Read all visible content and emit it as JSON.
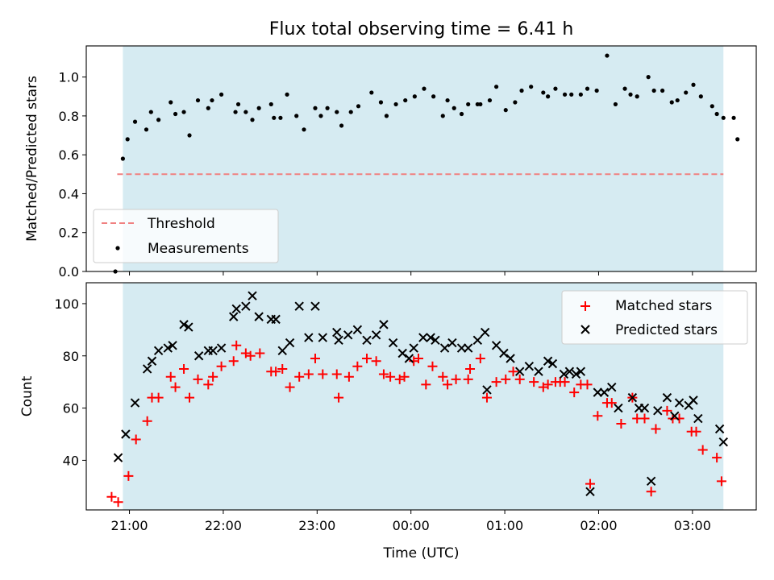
{
  "chart_data": [
    {
      "type": "scatter",
      "title": "Flux total observing time = 6.41 h",
      "ylabel": "Matched/Predicted stars",
      "xlabel": "",
      "x_unit": "hours since 20:00 UTC",
      "xlim": [
        20.54,
        27.68
      ],
      "ylim": [
        0,
        1.16
      ],
      "yticks": [
        0.0,
        0.2,
        0.4,
        0.6,
        0.8,
        1.0
      ],
      "ytick_labels": [
        "0.0",
        "0.2",
        "0.4",
        "0.6",
        "0.8",
        "1.0"
      ],
      "xticks": [
        21,
        22,
        23,
        24,
        25,
        26,
        27
      ],
      "shaded_span": [
        20.93,
        27.33
      ],
      "shade_color": "#add8e6",
      "grid": false,
      "legend_position": "lower-left",
      "threshold": {
        "name": "Threshold",
        "value": 0.5,
        "x_range": [
          20.87,
          27.33
        ],
        "color": "#f08080",
        "style": "dashed"
      },
      "series": [
        {
          "name": "Measurements",
          "color": "#000000",
          "marker": "dot",
          "points": [
            [
              20.85,
              0.0
            ],
            [
              20.93,
              0.58
            ],
            [
              20.98,
              0.68
            ],
            [
              21.06,
              0.77
            ],
            [
              21.18,
              0.73
            ],
            [
              21.23,
              0.82
            ],
            [
              21.31,
              0.78
            ],
            [
              21.44,
              0.87
            ],
            [
              21.49,
              0.81
            ],
            [
              21.58,
              0.82
            ],
            [
              21.64,
              0.7
            ],
            [
              21.73,
              0.88
            ],
            [
              21.84,
              0.84
            ],
            [
              21.88,
              0.88
            ],
            [
              21.98,
              0.91
            ],
            [
              22.13,
              0.82
            ],
            [
              22.16,
              0.86
            ],
            [
              22.24,
              0.82
            ],
            [
              22.31,
              0.78
            ],
            [
              22.38,
              0.84
            ],
            [
              22.51,
              0.86
            ],
            [
              22.54,
              0.79
            ],
            [
              22.61,
              0.79
            ],
            [
              22.68,
              0.91
            ],
            [
              22.78,
              0.8
            ],
            [
              22.86,
              0.73
            ],
            [
              22.98,
              0.84
            ],
            [
              23.04,
              0.8
            ],
            [
              23.11,
              0.84
            ],
            [
              23.21,
              0.82
            ],
            [
              23.26,
              0.75
            ],
            [
              23.36,
              0.82
            ],
            [
              23.44,
              0.85
            ],
            [
              23.58,
              0.92
            ],
            [
              23.68,
              0.87
            ],
            [
              23.74,
              0.8
            ],
            [
              23.84,
              0.86
            ],
            [
              23.94,
              0.88
            ],
            [
              24.04,
              0.9
            ],
            [
              24.14,
              0.94
            ],
            [
              24.24,
              0.9
            ],
            [
              24.34,
              0.8
            ],
            [
              24.39,
              0.88
            ],
            [
              24.46,
              0.84
            ],
            [
              24.54,
              0.81
            ],
            [
              24.61,
              0.86
            ],
            [
              24.71,
              0.86
            ],
            [
              24.74,
              0.86
            ],
            [
              24.84,
              0.88
            ],
            [
              24.91,
              0.95
            ],
            [
              25.01,
              0.83
            ],
            [
              25.11,
              0.87
            ],
            [
              25.18,
              0.93
            ],
            [
              25.28,
              0.95
            ],
            [
              25.41,
              0.92
            ],
            [
              25.46,
              0.9
            ],
            [
              25.54,
              0.94
            ],
            [
              25.64,
              0.91
            ],
            [
              25.71,
              0.91
            ],
            [
              25.81,
              0.91
            ],
            [
              25.88,
              0.94
            ],
            [
              25.98,
              0.93
            ],
            [
              26.09,
              1.11
            ],
            [
              26.18,
              0.86
            ],
            [
              26.28,
              0.94
            ],
            [
              26.34,
              0.91
            ],
            [
              26.41,
              0.9
            ],
            [
              26.53,
              1.0
            ],
            [
              26.59,
              0.93
            ],
            [
              26.68,
              0.93
            ],
            [
              26.78,
              0.87
            ],
            [
              26.84,
              0.88
            ],
            [
              26.93,
              0.92
            ],
            [
              27.01,
              0.96
            ],
            [
              27.09,
              0.9
            ],
            [
              27.21,
              0.85
            ],
            [
              27.26,
              0.81
            ],
            [
              27.33,
              0.79
            ],
            [
              27.44,
              0.79
            ],
            [
              27.48,
              0.68
            ]
          ]
        }
      ]
    },
    {
      "type": "scatter",
      "title": "",
      "xlabel": "Time (UTC)",
      "ylabel": "Count",
      "x_unit": "hours since 20:00 UTC",
      "xlim": [
        20.54,
        27.68
      ],
      "ylim": [
        21,
        108
      ],
      "yticks": [
        40,
        60,
        80,
        100
      ],
      "ytick_labels": [
        "40",
        "60",
        "80",
        "100"
      ],
      "xticks": [
        21,
        22,
        23,
        24,
        25,
        26,
        27
      ],
      "xtick_labels": [
        "21:00",
        "22:00",
        "23:00",
        "00:00",
        "01:00",
        "02:00",
        "03:00"
      ],
      "shaded_span": [
        20.93,
        27.33
      ],
      "shade_color": "#add8e6",
      "grid": false,
      "legend_position": "top-right",
      "series": [
        {
          "name": "Matched stars",
          "color": "#ff0000",
          "marker": "plus",
          "points": [
            [
              20.81,
              26
            ],
            [
              20.88,
              24
            ],
            [
              20.99,
              34
            ],
            [
              21.07,
              48
            ],
            [
              21.19,
              55
            ],
            [
              21.24,
              64
            ],
            [
              21.31,
              64
            ],
            [
              21.44,
              72
            ],
            [
              21.49,
              68
            ],
            [
              21.58,
              75
            ],
            [
              21.64,
              64
            ],
            [
              21.73,
              71
            ],
            [
              21.84,
              69
            ],
            [
              21.89,
              72
            ],
            [
              21.98,
              76
            ],
            [
              22.11,
              78
            ],
            [
              22.14,
              84
            ],
            [
              22.24,
              81
            ],
            [
              22.29,
              80
            ],
            [
              22.39,
              81
            ],
            [
              22.51,
              74
            ],
            [
              22.56,
              74
            ],
            [
              22.63,
              75
            ],
            [
              22.71,
              68
            ],
            [
              22.81,
              72
            ],
            [
              22.91,
              73
            ],
            [
              22.98,
              79
            ],
            [
              23.06,
              73
            ],
            [
              23.21,
              73
            ],
            [
              23.23,
              64
            ],
            [
              23.34,
              72
            ],
            [
              23.43,
              76
            ],
            [
              23.53,
              79
            ],
            [
              23.63,
              78
            ],
            [
              23.71,
              73
            ],
            [
              23.78,
              72
            ],
            [
              23.88,
              71
            ],
            [
              23.93,
              72
            ],
            [
              24.03,
              78
            ],
            [
              24.08,
              79
            ],
            [
              24.16,
              69
            ],
            [
              24.23,
              76
            ],
            [
              24.34,
              72
            ],
            [
              24.39,
              69
            ],
            [
              24.48,
              71
            ],
            [
              24.61,
              71
            ],
            [
              24.63,
              75
            ],
            [
              24.74,
              79
            ],
            [
              24.81,
              64
            ],
            [
              24.91,
              70
            ],
            [
              25.01,
              71
            ],
            [
              25.09,
              74
            ],
            [
              25.16,
              71
            ],
            [
              25.31,
              70
            ],
            [
              25.41,
              68
            ],
            [
              25.46,
              69
            ],
            [
              25.54,
              70
            ],
            [
              25.59,
              70
            ],
            [
              25.64,
              70
            ],
            [
              25.74,
              66
            ],
            [
              25.81,
              69
            ],
            [
              25.88,
              69
            ],
            [
              25.91,
              31
            ],
            [
              25.99,
              57
            ],
            [
              26.09,
              62
            ],
            [
              26.14,
              62
            ],
            [
              26.24,
              54
            ],
            [
              26.36,
              64
            ],
            [
              26.41,
              56
            ],
            [
              26.49,
              56
            ],
            [
              26.56,
              28
            ],
            [
              26.61,
              52
            ],
            [
              26.73,
              59
            ],
            [
              26.79,
              56
            ],
            [
              26.86,
              56
            ],
            [
              26.99,
              51
            ],
            [
              27.04,
              51
            ],
            [
              27.11,
              44
            ],
            [
              27.26,
              41
            ],
            [
              27.31,
              32
            ]
          ]
        },
        {
          "name": "Predicted stars",
          "color": "#000000",
          "marker": "x",
          "points": [
            [
              20.88,
              41
            ],
            [
              20.96,
              50
            ],
            [
              21.06,
              62
            ],
            [
              21.19,
              75
            ],
            [
              21.24,
              78
            ],
            [
              21.31,
              82
            ],
            [
              21.41,
              83
            ],
            [
              21.46,
              84
            ],
            [
              21.58,
              92
            ],
            [
              21.63,
              91
            ],
            [
              21.74,
              80
            ],
            [
              21.84,
              82
            ],
            [
              21.89,
              82
            ],
            [
              21.98,
              83
            ],
            [
              22.11,
              95
            ],
            [
              22.14,
              98
            ],
            [
              22.24,
              99
            ],
            [
              22.31,
              103
            ],
            [
              22.38,
              95
            ],
            [
              22.51,
              94
            ],
            [
              22.56,
              94
            ],
            [
              22.63,
              82
            ],
            [
              22.71,
              85
            ],
            [
              22.81,
              99
            ],
            [
              22.91,
              87
            ],
            [
              22.98,
              99
            ],
            [
              23.06,
              87
            ],
            [
              23.21,
              89
            ],
            [
              23.23,
              86
            ],
            [
              23.33,
              88
            ],
            [
              23.43,
              90
            ],
            [
              23.53,
              86
            ],
            [
              23.63,
              88
            ],
            [
              23.71,
              92
            ],
            [
              23.81,
              85
            ],
            [
              23.91,
              81
            ],
            [
              23.98,
              79
            ],
            [
              24.03,
              83
            ],
            [
              24.13,
              87
            ],
            [
              24.21,
              87
            ],
            [
              24.26,
              86
            ],
            [
              24.36,
              83
            ],
            [
              24.44,
              85
            ],
            [
              24.54,
              83
            ],
            [
              24.61,
              83
            ],
            [
              24.71,
              86
            ],
            [
              24.79,
              89
            ],
            [
              24.81,
              67
            ],
            [
              24.91,
              84
            ],
            [
              24.99,
              81
            ],
            [
              25.06,
              79
            ],
            [
              25.16,
              74
            ],
            [
              25.26,
              76
            ],
            [
              25.36,
              74
            ],
            [
              25.46,
              78
            ],
            [
              25.51,
              77
            ],
            [
              25.63,
              73
            ],
            [
              25.69,
              74
            ],
            [
              25.76,
              73
            ],
            [
              25.81,
              74
            ],
            [
              25.91,
              28
            ],
            [
              25.99,
              66
            ],
            [
              26.06,
              66
            ],
            [
              26.14,
              68
            ],
            [
              26.21,
              60
            ],
            [
              26.36,
              64
            ],
            [
              26.43,
              60
            ],
            [
              26.49,
              60
            ],
            [
              26.56,
              32
            ],
            [
              26.63,
              59
            ],
            [
              26.73,
              64
            ],
            [
              26.81,
              57
            ],
            [
              26.86,
              62
            ],
            [
              26.96,
              61
            ],
            [
              27.01,
              63
            ],
            [
              27.06,
              56
            ],
            [
              27.29,
              52
            ],
            [
              27.33,
              47
            ]
          ]
        }
      ]
    }
  ]
}
